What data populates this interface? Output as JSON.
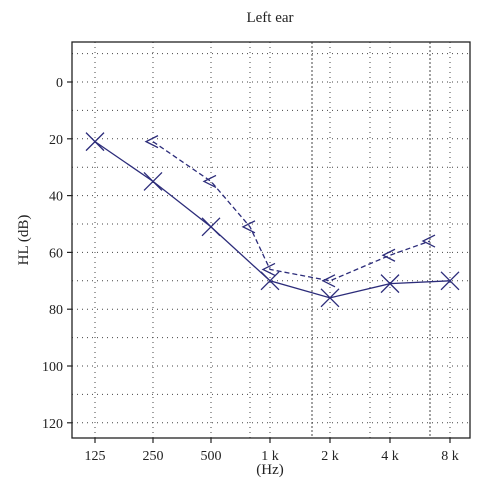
{
  "chart_data": {
    "type": "line",
    "title": "Left ear",
    "xlabel": "(Hz)",
    "ylabel": "HL (dB)",
    "x_ticks": [
      "125",
      "250",
      "500",
      "1 k",
      "2 k",
      "4 k",
      "8 k"
    ],
    "y_ticks": [
      0,
      20,
      40,
      60,
      80,
      100,
      120
    ],
    "ylim": [
      -15,
      125
    ],
    "y_inverted": true,
    "grid": true,
    "series": [
      {
        "marker": "X",
        "line_style": "solid",
        "color": "#2c2c7a",
        "x": [
          "125",
          "250",
          "500",
          "1 k",
          "2 k",
          "4 k",
          "8 k"
        ],
        "values": [
          21,
          35,
          51,
          70,
          76,
          71,
          70
        ]
      },
      {
        "marker": "<",
        "line_style": "dashed",
        "color": "#2c2c7a",
        "x": [
          "250",
          "500",
          "750",
          "1 k",
          "2 k",
          "4 k",
          "6 k"
        ],
        "values": [
          21,
          35,
          51,
          66,
          70,
          61,
          56
        ]
      }
    ]
  }
}
